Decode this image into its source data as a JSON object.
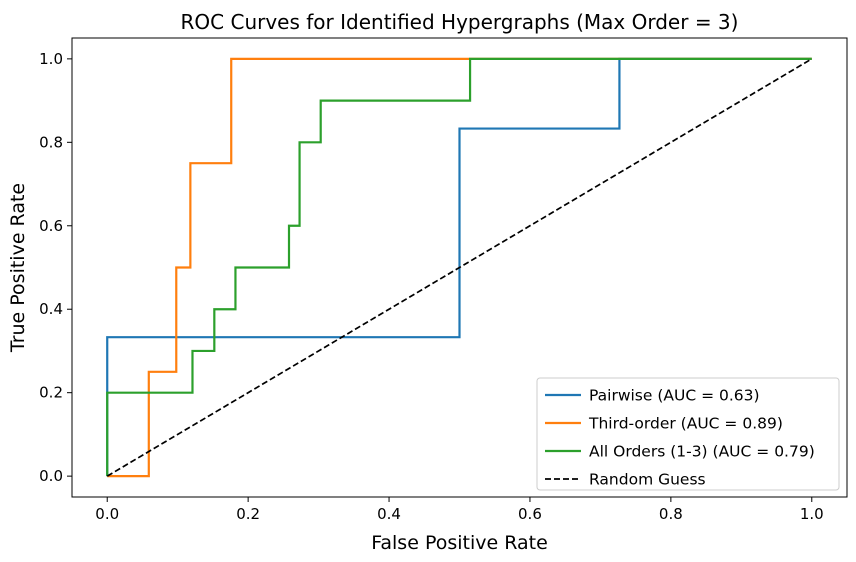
{
  "chart_data": {
    "type": "line",
    "title": "ROC Curves for Identified Hypergraphs (Max Order = 3)",
    "xlabel": "False Positive Rate",
    "ylabel": "True Positive Rate",
    "xlim": [
      -0.05,
      1.05
    ],
    "ylim": [
      -0.05,
      1.05
    ],
    "xticks": [
      "0.0",
      "0.2",
      "0.4",
      "0.6",
      "0.8",
      "1.0"
    ],
    "yticks": [
      "0.0",
      "0.2",
      "0.4",
      "0.6",
      "0.8",
      "1.0"
    ],
    "grid": false,
    "legend_position": "bottom-right",
    "series": [
      {
        "name": "Pairwise (AUC = 0.63)",
        "color": "#1f77b4",
        "dash": "solid",
        "x": [
          0.0,
          0.0,
          0.5,
          0.5,
          0.727,
          0.727,
          1.0
        ],
        "y": [
          0.0,
          0.333,
          0.333,
          0.833,
          0.833,
          1.0,
          1.0
        ]
      },
      {
        "name": "Third-order (AUC = 0.89)",
        "color": "#ff7f0e",
        "dash": "solid",
        "x": [
          0.0,
          0.059,
          0.059,
          0.098,
          0.098,
          0.118,
          0.118,
          0.176,
          0.176,
          1.0
        ],
        "y": [
          0.0,
          0.0,
          0.25,
          0.25,
          0.5,
          0.5,
          0.75,
          0.75,
          1.0,
          1.0
        ]
      },
      {
        "name": "All Orders (1-3) (AUC = 0.79)",
        "color": "#2ca02c",
        "dash": "solid",
        "x": [
          0.0,
          0.0,
          0.121,
          0.121,
          0.152,
          0.152,
          0.182,
          0.182,
          0.258,
          0.258,
          0.273,
          0.273,
          0.303,
          0.303,
          0.515,
          0.515,
          1.0
        ],
        "y": [
          0.0,
          0.2,
          0.2,
          0.3,
          0.3,
          0.4,
          0.4,
          0.5,
          0.5,
          0.6,
          0.6,
          0.8,
          0.8,
          0.9,
          0.9,
          1.0,
          1.0
        ]
      },
      {
        "name": "Random Guess",
        "color": "#000000",
        "dash": "dashed",
        "x": [
          0.0,
          1.0
        ],
        "y": [
          0.0,
          1.0
        ]
      }
    ]
  }
}
